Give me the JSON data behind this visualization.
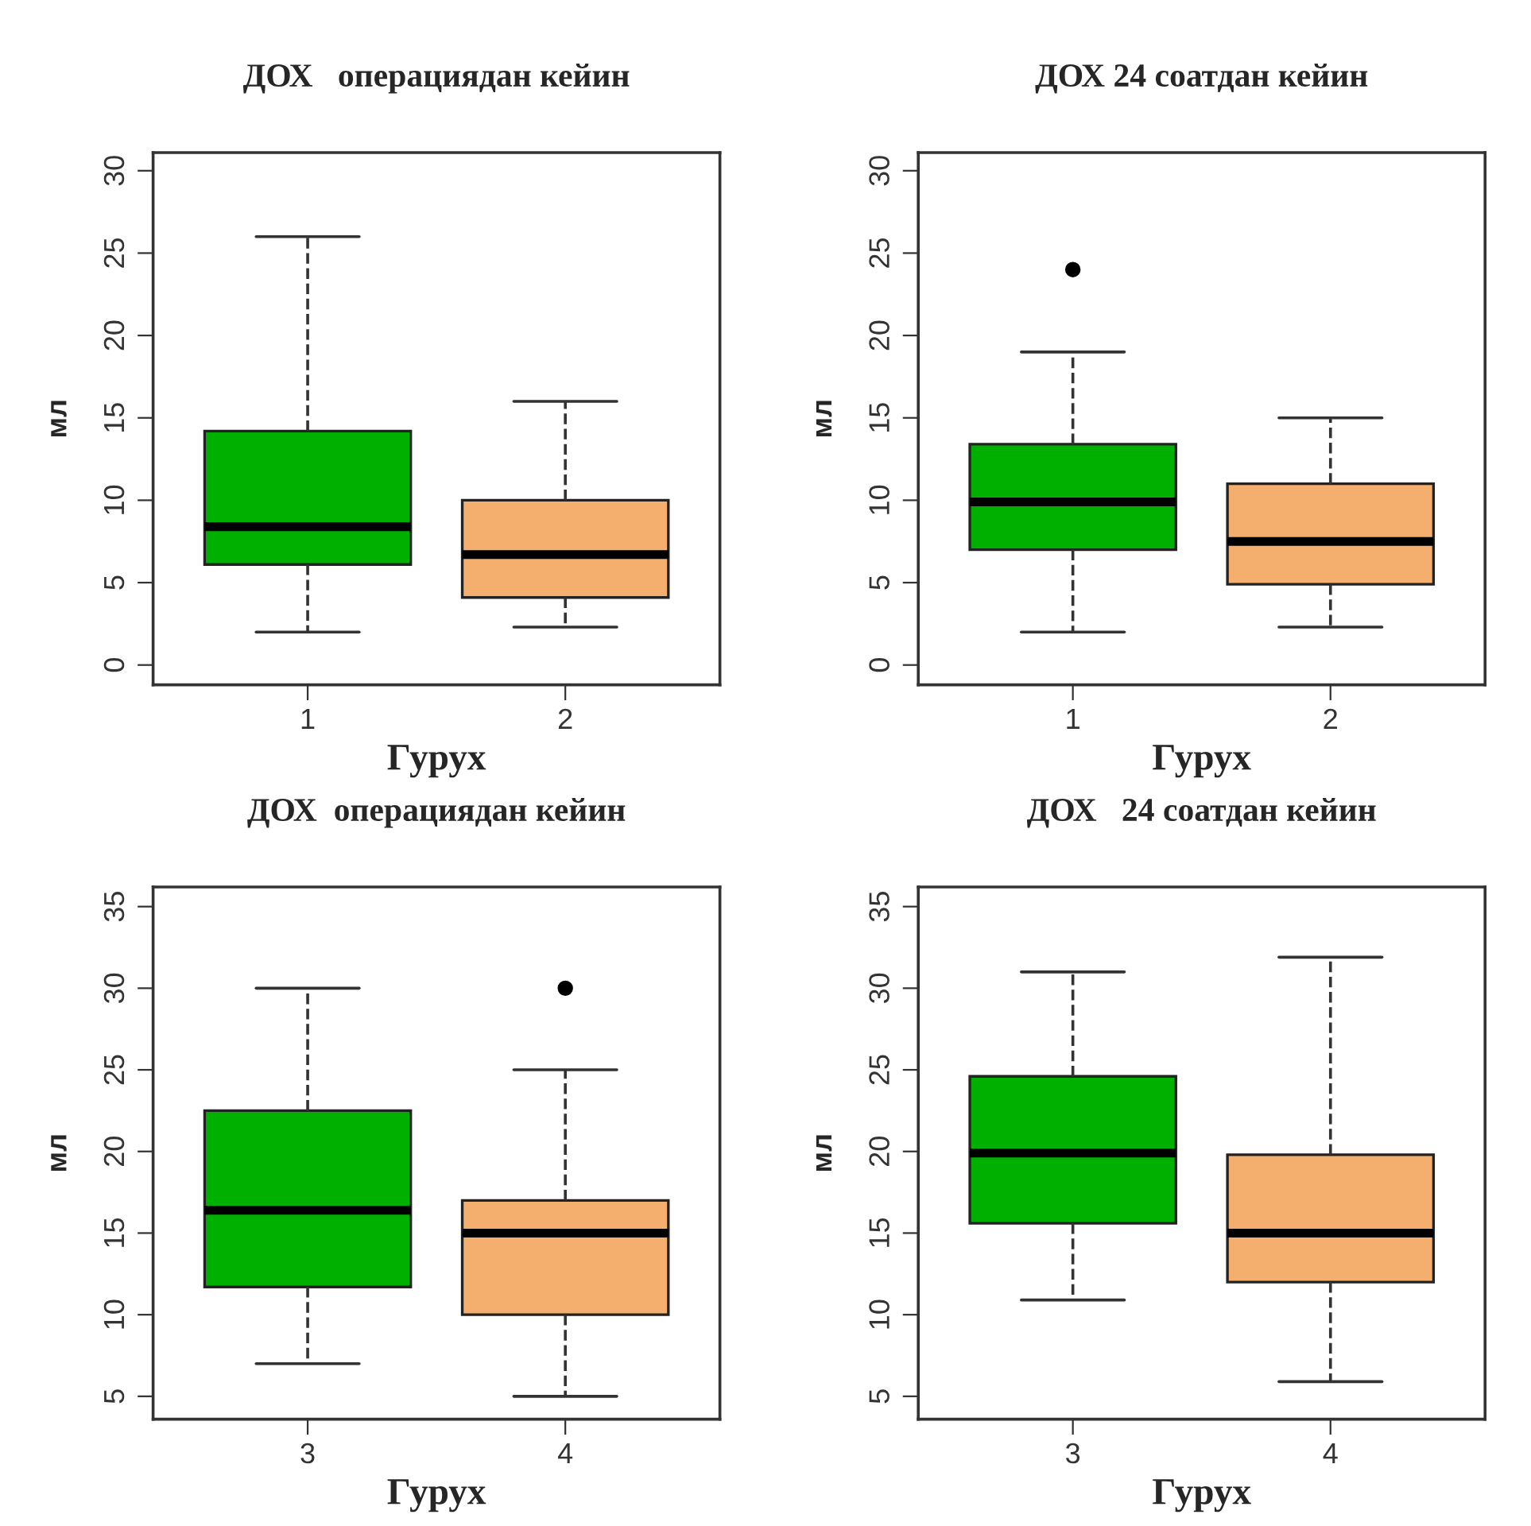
{
  "chart_data": [
    {
      "type": "box",
      "title": "ДОХ   операциядан кейин",
      "xlabel": "Гурух",
      "ylabel": "мл",
      "categories": [
        "1",
        "2"
      ],
      "colors": [
        "#00b000",
        "#f4ae6e"
      ],
      "ylim": [
        -1.2,
        31.1
      ],
      "yticks": [
        0,
        5,
        10,
        15,
        20,
        25,
        30
      ],
      "boxes": [
        {
          "low": 2,
          "q1": 6.1,
          "median": 8.4,
          "q3": 14.2,
          "high": 26
        },
        {
          "low": 2.3,
          "q1": 4.1,
          "median": 6.7,
          "q3": 10,
          "high": 16
        }
      ]
    },
    {
      "type": "box",
      "title": "ДОХ 24 соатдан кейин",
      "xlabel": "Гурух",
      "ylabel": "мл",
      "categories": [
        "1",
        "2"
      ],
      "colors": [
        "#00b000",
        "#f4ae6e"
      ],
      "ylim": [
        -1.2,
        31.1
      ],
      "yticks": [
        0,
        5,
        10,
        15,
        20,
        25,
        30
      ],
      "boxes": [
        {
          "low": 2,
          "q1": 7,
          "median": 9.9,
          "q3": 13.4,
          "high": 19,
          "outliers": [
            24
          ]
        },
        {
          "low": 2.3,
          "q1": 4.9,
          "median": 7.5,
          "q3": 11,
          "high": 15
        }
      ]
    },
    {
      "type": "box",
      "title": "ДОХ  операциядан кейин",
      "xlabel": "Гурух",
      "ylabel": "мл",
      "categories": [
        "3",
        "4"
      ],
      "colors": [
        "#00b000",
        "#f4ae6e"
      ],
      "ylim": [
        3.6,
        36.2
      ],
      "yticks": [
        5,
        10,
        15,
        20,
        25,
        30,
        35
      ],
      "boxes": [
        {
          "low": 7,
          "q1": 11.7,
          "median": 16.4,
          "q3": 22.5,
          "high": 30
        },
        {
          "low": 5,
          "q1": 10,
          "median": 15,
          "q3": 17,
          "high": 25,
          "outliers": [
            30
          ]
        }
      ]
    },
    {
      "type": "box",
      "title": "ДОХ   24 соатдан кейин",
      "xlabel": "Гурух",
      "ylabel": "мл",
      "categories": [
        "3",
        "4"
      ],
      "colors": [
        "#00b000",
        "#f4ae6e"
      ],
      "ylim": [
        3.6,
        36.2
      ],
      "yticks": [
        5,
        10,
        15,
        20,
        25,
        30,
        35
      ],
      "boxes": [
        {
          "low": 10.9,
          "q1": 15.6,
          "median": 19.9,
          "q3": 24.6,
          "high": 31
        },
        {
          "low": 5.9,
          "q1": 12,
          "median": 15,
          "q3": 19.8,
          "high": 31.9
        }
      ]
    }
  ]
}
